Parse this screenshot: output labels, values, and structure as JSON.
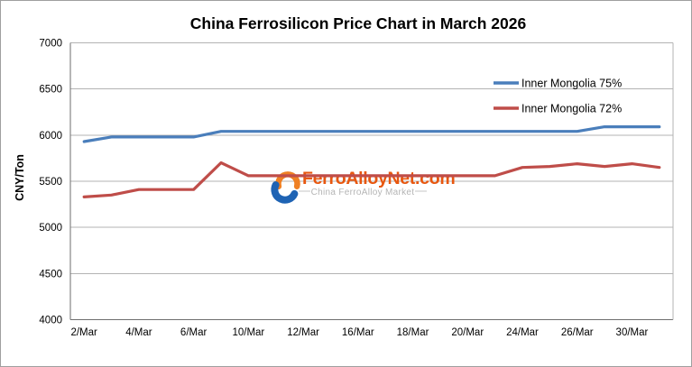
{
  "title": "China Ferrosilicon Price Chart in March 2026",
  "y_axis_title": "CNY/Ton",
  "colors": {
    "series_75": "#4a7ebb",
    "series_72": "#bf4d49",
    "gridline": "#b3b3b3",
    "axis_line": "#6e6e6e",
    "watermark_orange": "#e8570f",
    "watermark_gray": "#b4b4b4"
  },
  "legend": [
    {
      "label": "Inner Mongolia 75%",
      "color": "#4a7ebb"
    },
    {
      "label": "Inner Mongolia 72%",
      "color": "#bf4d49"
    }
  ],
  "watermark": {
    "brand": "FerroAlloyNet.com",
    "tagline": "China FerroAlloy Market"
  },
  "chart_data": {
    "type": "line",
    "title": "China Ferrosilicon Price Chart in March 2026",
    "xlabel": "",
    "ylabel": "CNY/Ton",
    "ylim": [
      4000,
      7000
    ],
    "ytick_step": 500,
    "ytick_labels": [
      "4000",
      "4500",
      "5000",
      "5500",
      "6000",
      "6500",
      "7000"
    ],
    "grid": "horizontal",
    "legend_position": "upper-right-inside",
    "categories": [
      "2/Mar",
      "3/Mar",
      "4/Mar",
      "5/Mar",
      "6/Mar",
      "9/Mar",
      "10/Mar",
      "11/Mar",
      "12/Mar",
      "13/Mar",
      "16/Mar",
      "17/Mar",
      "18/Mar",
      "19/Mar",
      "20/Mar",
      "23/Mar",
      "24/Mar",
      "25/Mar",
      "26/Mar",
      "27/Mar",
      "30/Mar",
      "31/Mar"
    ],
    "xtick_label_indices": [
      0,
      2,
      4,
      6,
      8,
      10,
      12,
      14,
      16,
      18,
      20
    ],
    "series": [
      {
        "name": "Inner Mongolia 75%",
        "color": "#4a7ebb",
        "values": [
          5930,
          5980,
          5980,
          5980,
          5980,
          6040,
          6040,
          6040,
          6040,
          6040,
          6040,
          6040,
          6040,
          6040,
          6040,
          6040,
          6040,
          6040,
          6040,
          6090,
          6090,
          6090
        ]
      },
      {
        "name": "Inner Mongolia 72%",
        "color": "#bf4d49",
        "values": [
          5330,
          5350,
          5410,
          5410,
          5410,
          5700,
          5560,
          5560,
          5560,
          5560,
          5560,
          5560,
          5560,
          5560,
          5560,
          5560,
          5650,
          5660,
          5690,
          5660,
          5690,
          5650
        ]
      }
    ]
  }
}
